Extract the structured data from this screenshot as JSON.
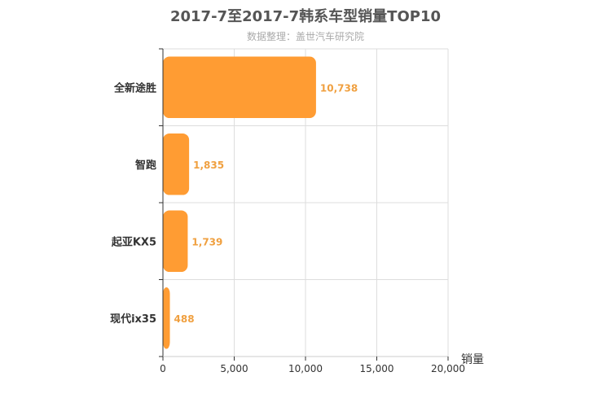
{
  "chart_data": {
    "type": "bar",
    "orientation": "horizontal",
    "title": "2017-7至2017-7韩系车型销量TOP10",
    "subtitle": "数据整理：盖世汽车研究院",
    "categories": [
      "全新途胜",
      "智跑",
      "起亚KX5",
      "现代ix35"
    ],
    "values": [
      10738,
      1835,
      1739,
      488
    ],
    "value_labels": [
      "10,738",
      "1,835",
      "1,739",
      "488"
    ],
    "xlabel": "销量",
    "ylabel": "",
    "xlim": [
      0,
      20000
    ],
    "x_ticks": [
      0,
      5000,
      10000,
      15000,
      20000
    ],
    "x_tick_labels": [
      "0",
      "5,000",
      "10,000",
      "15,000",
      "20,000"
    ],
    "grid": true,
    "colors": {
      "bar": "#FF9C33",
      "value_label": "#F0A040",
      "grid": "#DDDDDD",
      "axis": "#333333"
    }
  }
}
